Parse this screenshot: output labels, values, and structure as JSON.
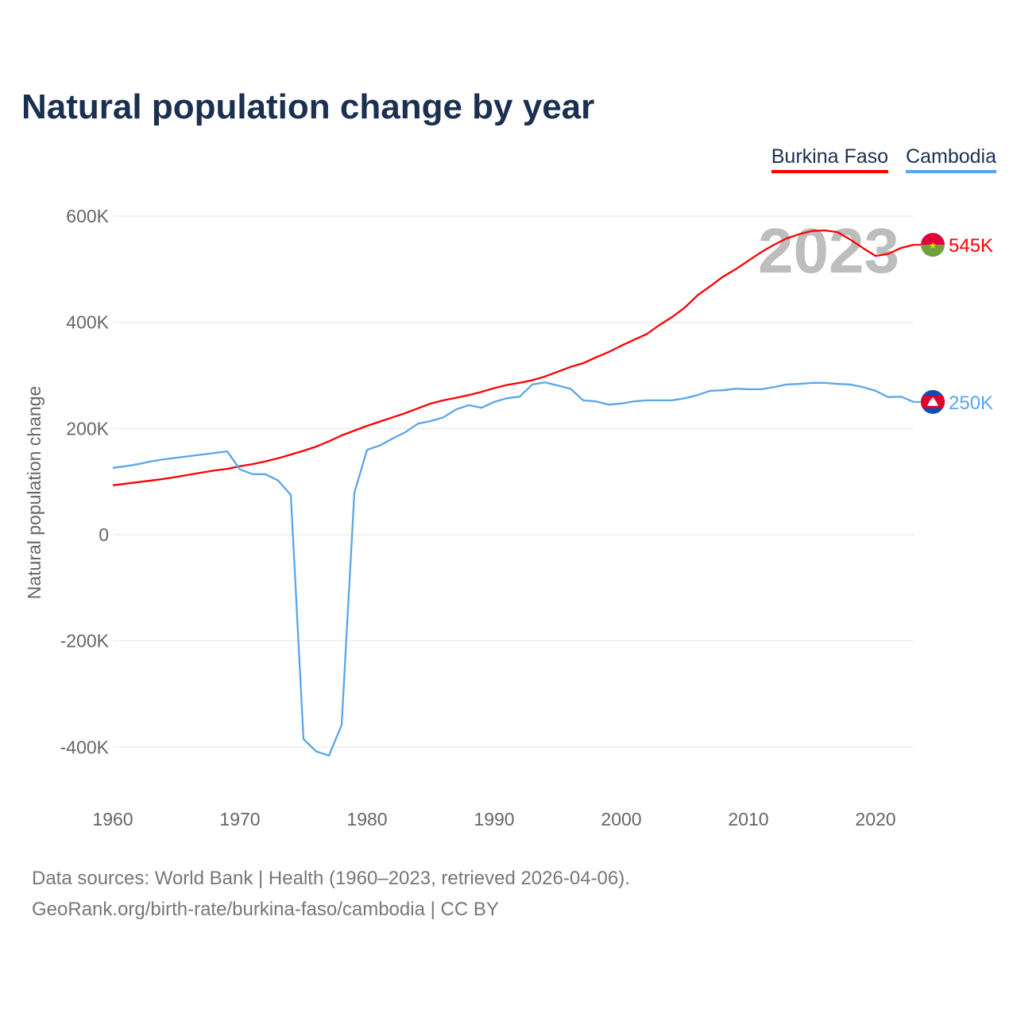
{
  "chart_data": {
    "type": "line",
    "title": "Natural population change by year",
    "xlabel": "",
    "ylabel": "Natural population change",
    "xlim": [
      1960,
      2023
    ],
    "ylim": [
      -500000,
      600000
    ],
    "x_ticks": [
      1960,
      1970,
      1980,
      1990,
      2000,
      2010,
      2020
    ],
    "x_tick_labels": [
      "1960",
      "1970",
      "1980",
      "1990",
      "2000",
      "2010",
      "2020"
    ],
    "y_ticks": [
      600000,
      400000,
      200000,
      0,
      -200000,
      -400000
    ],
    "y_tick_labels": [
      "600K",
      "400K",
      "200K",
      "0",
      "-200K",
      "-400K"
    ],
    "grid": true,
    "legend_position": "top-right",
    "year_watermark": "2023",
    "x": [
      1960,
      1961,
      1962,
      1963,
      1964,
      1965,
      1966,
      1967,
      1968,
      1969,
      1970,
      1971,
      1972,
      1973,
      1974,
      1975,
      1976,
      1977,
      1978,
      1979,
      1980,
      1981,
      1982,
      1983,
      1984,
      1985,
      1986,
      1987,
      1988,
      1989,
      1990,
      1991,
      1992,
      1993,
      1994,
      1995,
      1996,
      1997,
      1998,
      1999,
      2000,
      2001,
      2002,
      2003,
      2004,
      2005,
      2006,
      2007,
      2008,
      2009,
      2010,
      2011,
      2012,
      2013,
      2014,
      2015,
      2016,
      2017,
      2018,
      2019,
      2020,
      2021,
      2022,
      2023
    ],
    "series": [
      {
        "name": "Burkina Faso",
        "color": "#ff0000",
        "end_label": "545K",
        "values": [
          93000,
          96000,
          99000,
          102000,
          105000,
          109000,
          113000,
          117000,
          121000,
          124000,
          129000,
          133000,
          138000,
          144000,
          151000,
          158000,
          166000,
          176000,
          187000,
          196000,
          205000,
          213000,
          221000,
          229000,
          238000,
          247000,
          253000,
          258000,
          263000,
          269000,
          276000,
          282000,
          286000,
          291000,
          298000,
          307000,
          316000,
          323000,
          334000,
          344000,
          356000,
          367000,
          378000,
          395000,
          410000,
          428000,
          451000,
          468000,
          486000,
          500000,
          516000,
          532000,
          546000,
          558000,
          566000,
          572000,
          573000,
          570000,
          556000,
          540000,
          525000,
          529000,
          540000,
          546000
        ]
      },
      {
        "name": "Cambodia",
        "color": "#5aa5ea",
        "end_label": "250K",
        "values": [
          126000,
          129000,
          133000,
          138000,
          142000,
          145000,
          148000,
          151000,
          154000,
          157000,
          123000,
          114000,
          114000,
          102000,
          75000,
          -385000,
          -408000,
          -416000,
          -358000,
          79000,
          160000,
          168000,
          181000,
          193000,
          209000,
          214000,
          221000,
          236000,
          244000,
          239000,
          250000,
          257000,
          260000,
          283000,
          287000,
          281000,
          275000,
          253000,
          251000,
          245000,
          247000,
          251000,
          253000,
          253000,
          253000,
          257000,
          263000,
          271000,
          272000,
          275000,
          274000,
          274000,
          278000,
          283000,
          284000,
          286000,
          286000,
          284000,
          283000,
          278000,
          271000,
          259000,
          260000,
          250000
        ]
      }
    ]
  },
  "footer": {
    "line1": "Data sources: World Bank | Health (1960–2023, retrieved 2026-04-06).",
    "line2": "GeoRank.org/birth-rate/burkina-faso/cambodia | CC BY"
  }
}
